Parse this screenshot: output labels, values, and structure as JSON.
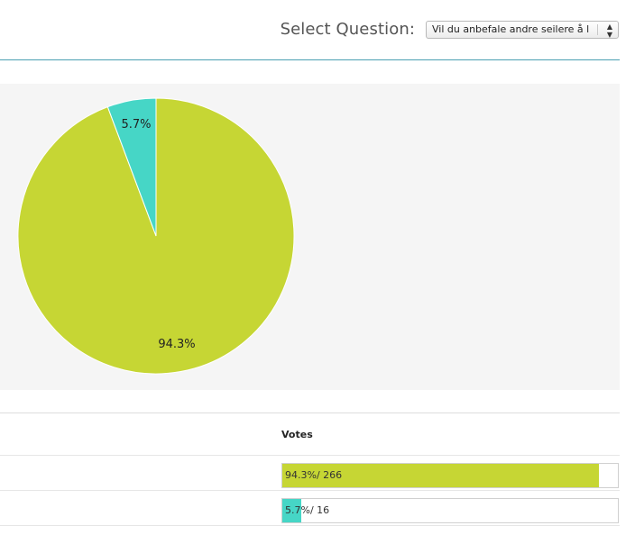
{
  "header": {
    "select_label": "Select Question:",
    "selected_question": "Vil du anbefale andre seilere å l"
  },
  "colors": {
    "accent_rule": "#4a9fb2",
    "slice_main": "#c6d634",
    "slice_minor": "#46d6c6"
  },
  "chart_data": {
    "type": "pie",
    "slices": [
      {
        "label": "94.3%",
        "value": 94.3,
        "color": "#c6d634"
      },
      {
        "label": "5.7%",
        "value": 5.7,
        "color": "#46d6c6"
      }
    ]
  },
  "results": {
    "votes_heading": "Votes",
    "rows": [
      {
        "percent_text": "94.3%",
        "count_text": "/ 266",
        "fraction": 0.943,
        "color": "#c6d634"
      },
      {
        "percent_text": "5.7%",
        "count_text": "/ 16",
        "fraction": 0.057,
        "color": "#46d6c6"
      }
    ]
  }
}
